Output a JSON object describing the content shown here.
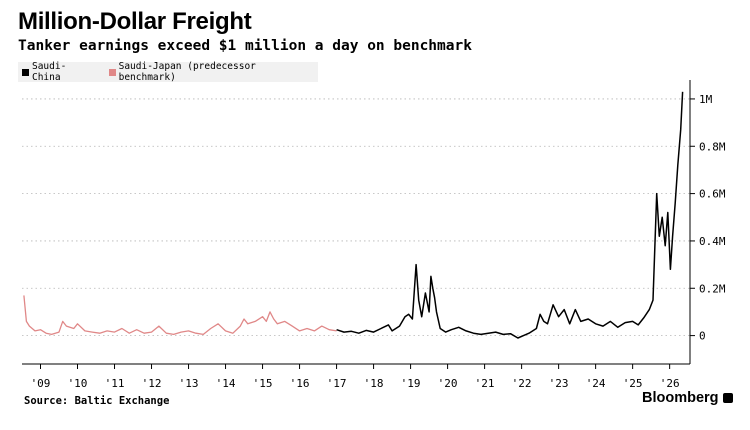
{
  "chart_data": {
    "type": "line",
    "title": "Million-Dollar Freight",
    "subtitle": "Tanker earnings exceed $1 million a day on benchmark",
    "xlabel": "",
    "ylabel": "",
    "xlim": [
      2008.5,
      2026.55
    ],
    "ylim": [
      -120000,
      1080000
    ],
    "x_ticks": [
      {
        "label": "'09",
        "value": 2009.0
      },
      {
        "label": "'10",
        "value": 2010.0
      },
      {
        "label": "'11",
        "value": 2011.0
      },
      {
        "label": "'12",
        "value": 2012.0
      },
      {
        "label": "'13",
        "value": 2013.0
      },
      {
        "label": "'14",
        "value": 2014.0
      },
      {
        "label": "'15",
        "value": 2015.0
      },
      {
        "label": "'16",
        "value": 2016.0
      },
      {
        "label": "'17",
        "value": 2017.0
      },
      {
        "label": "'18",
        "value": 2018.0
      },
      {
        "label": "'19",
        "value": 2019.0
      },
      {
        "label": "'20",
        "value": 2020.0
      },
      {
        "label": "'21",
        "value": 2021.0
      },
      {
        "label": "'22",
        "value": 2022.0
      },
      {
        "label": "'23",
        "value": 2023.0
      },
      {
        "label": "'24",
        "value": 2024.0
      },
      {
        "label": "'25",
        "value": 2025.0
      },
      {
        "label": "'26",
        "value": 2026.0
      }
    ],
    "y_ticks": [
      {
        "label": "1M",
        "value": 1000000
      },
      {
        "label": "0.8M",
        "value": 800000
      },
      {
        "label": "0.6M",
        "value": 600000
      },
      {
        "label": "0.4M",
        "value": 400000
      },
      {
        "label": "0.2M",
        "value": 200000
      },
      {
        "label": "0",
        "value": 0
      }
    ],
    "grid": "horizontal dotted",
    "legend_position": "top-left",
    "series": [
      {
        "name": "Saudi-China",
        "color": "#000000",
        "points": [
          [
            2017.0,
            25000
          ],
          [
            2017.2,
            15000
          ],
          [
            2017.4,
            18000
          ],
          [
            2017.6,
            10000
          ],
          [
            2017.8,
            22000
          ],
          [
            2018.0,
            15000
          ],
          [
            2018.2,
            30000
          ],
          [
            2018.4,
            45000
          ],
          [
            2018.5,
            20000
          ],
          [
            2018.7,
            40000
          ],
          [
            2018.85,
            80000
          ],
          [
            2018.95,
            90000
          ],
          [
            2019.05,
            70000
          ],
          [
            2019.15,
            300000
          ],
          [
            2019.22,
            150000
          ],
          [
            2019.3,
            80000
          ],
          [
            2019.4,
            180000
          ],
          [
            2019.5,
            100000
          ],
          [
            2019.55,
            250000
          ],
          [
            2019.6,
            200000
          ],
          [
            2019.65,
            160000
          ],
          [
            2019.7,
            100000
          ],
          [
            2019.8,
            30000
          ],
          [
            2019.95,
            15000
          ],
          [
            2020.1,
            25000
          ],
          [
            2020.3,
            35000
          ],
          [
            2020.5,
            20000
          ],
          [
            2020.7,
            10000
          ],
          [
            2020.9,
            5000
          ],
          [
            2021.1,
            10000
          ],
          [
            2021.3,
            15000
          ],
          [
            2021.5,
            5000
          ],
          [
            2021.7,
            8000
          ],
          [
            2021.9,
            -10000
          ],
          [
            2022.05,
            0
          ],
          [
            2022.2,
            10000
          ],
          [
            2022.4,
            30000
          ],
          [
            2022.5,
            90000
          ],
          [
            2022.6,
            60000
          ],
          [
            2022.7,
            50000
          ],
          [
            2022.85,
            130000
          ],
          [
            2023.0,
            80000
          ],
          [
            2023.15,
            110000
          ],
          [
            2023.3,
            50000
          ],
          [
            2023.45,
            110000
          ],
          [
            2023.6,
            60000
          ],
          [
            2023.8,
            70000
          ],
          [
            2024.0,
            50000
          ],
          [
            2024.2,
            40000
          ],
          [
            2024.4,
            60000
          ],
          [
            2024.6,
            35000
          ],
          [
            2024.8,
            55000
          ],
          [
            2025.0,
            60000
          ],
          [
            2025.15,
            45000
          ],
          [
            2025.3,
            75000
          ],
          [
            2025.45,
            110000
          ],
          [
            2025.55,
            150000
          ],
          [
            2025.65,
            600000
          ],
          [
            2025.72,
            420000
          ],
          [
            2025.8,
            500000
          ],
          [
            2025.88,
            380000
          ],
          [
            2025.95,
            520000
          ],
          [
            2026.02,
            280000
          ],
          [
            2026.08,
            420000
          ],
          [
            2026.15,
            560000
          ],
          [
            2026.22,
            720000
          ],
          [
            2026.3,
            870000
          ],
          [
            2026.35,
            1030000
          ]
        ]
      },
      {
        "name": "Saudi-Japan (predecessor benchmark)",
        "color": "#e08888",
        "points": [
          [
            2008.55,
            170000
          ],
          [
            2008.62,
            60000
          ],
          [
            2008.7,
            40000
          ],
          [
            2008.85,
            20000
          ],
          [
            2009.0,
            25000
          ],
          [
            2009.15,
            10000
          ],
          [
            2009.3,
            5000
          ],
          [
            2009.5,
            15000
          ],
          [
            2009.6,
            60000
          ],
          [
            2009.7,
            40000
          ],
          [
            2009.9,
            30000
          ],
          [
            2010.0,
            50000
          ],
          [
            2010.2,
            20000
          ],
          [
            2010.4,
            15000
          ],
          [
            2010.6,
            10000
          ],
          [
            2010.8,
            20000
          ],
          [
            2011.0,
            15000
          ],
          [
            2011.2,
            30000
          ],
          [
            2011.4,
            10000
          ],
          [
            2011.6,
            25000
          ],
          [
            2011.8,
            10000
          ],
          [
            2012.0,
            15000
          ],
          [
            2012.2,
            40000
          ],
          [
            2012.4,
            10000
          ],
          [
            2012.6,
            5000
          ],
          [
            2012.8,
            15000
          ],
          [
            2013.0,
            20000
          ],
          [
            2013.2,
            10000
          ],
          [
            2013.4,
            5000
          ],
          [
            2013.6,
            30000
          ],
          [
            2013.8,
            50000
          ],
          [
            2014.0,
            20000
          ],
          [
            2014.2,
            10000
          ],
          [
            2014.4,
            40000
          ],
          [
            2014.5,
            70000
          ],
          [
            2014.6,
            50000
          ],
          [
            2014.8,
            60000
          ],
          [
            2015.0,
            80000
          ],
          [
            2015.1,
            60000
          ],
          [
            2015.2,
            100000
          ],
          [
            2015.3,
            70000
          ],
          [
            2015.4,
            50000
          ],
          [
            2015.6,
            60000
          ],
          [
            2015.8,
            40000
          ],
          [
            2016.0,
            20000
          ],
          [
            2016.2,
            30000
          ],
          [
            2016.4,
            20000
          ],
          [
            2016.6,
            40000
          ],
          [
            2016.8,
            25000
          ],
          [
            2017.0,
            20000
          ]
        ]
      }
    ]
  },
  "source_text": "Source: Baltic Exchange",
  "brand_text": "Bloomberg"
}
